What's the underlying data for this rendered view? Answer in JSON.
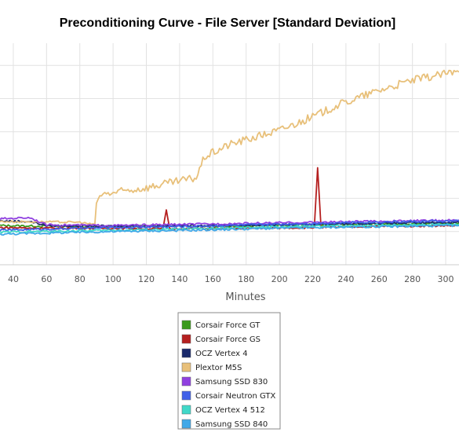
{
  "chart_data": {
    "type": "line",
    "title": "Preconditioning Curve - File Server [Standard Deviation]",
    "xlabel": "Minutes",
    "ylabel": "",
    "xlim": [
      32,
      308
    ],
    "ylim": [
      0,
      1
    ],
    "x_ticks": [
      40,
      60,
      80,
      100,
      120,
      140,
      160,
      180,
      200,
      220,
      240,
      260,
      280,
      300
    ],
    "y_gridlines": [
      0.1,
      0.2,
      0.3,
      0.4,
      0.5,
      0.6,
      0.7
    ],
    "grid": true,
    "legend_position": "bottom-center",
    "series": [
      {
        "name": "Corsair Force GT",
        "color": "#3a9a1c",
        "x": [
          32,
          60,
          90,
          130,
          170,
          210,
          250,
          290,
          308
        ],
        "y": [
          0.118,
          0.116,
          0.114,
          0.117,
          0.116,
          0.12,
          0.122,
          0.124,
          0.125
        ]
      },
      {
        "name": "Corsair Force GS",
        "color": "#b52020",
        "x": [
          32,
          60,
          100,
          130,
          132,
          134,
          180,
          221,
          223,
          225,
          260,
          308
        ],
        "y": [
          0.112,
          0.11,
          0.11,
          0.108,
          0.165,
          0.108,
          0.11,
          0.112,
          0.292,
          0.112,
          0.116,
          0.118
        ]
      },
      {
        "name": "OCZ Vertex 4",
        "color": "#1a2a6c",
        "x": [
          32,
          50,
          60,
          90,
          150,
          200,
          250,
          308
        ],
        "y": [
          0.132,
          0.13,
          0.118,
          0.116,
          0.118,
          0.12,
          0.124,
          0.128
        ]
      },
      {
        "name": "Plextor M5S",
        "color": "#e8c07a",
        "x": [
          32,
          80,
          89,
          90,
          92,
          120,
          150,
          155,
          170,
          200,
          220,
          235,
          260,
          280,
          300,
          308
        ],
        "y": [
          0.13,
          0.128,
          0.12,
          0.185,
          0.21,
          0.232,
          0.262,
          0.325,
          0.362,
          0.405,
          0.445,
          0.48,
          0.525,
          0.555,
          0.575,
          0.58
        ]
      },
      {
        "name": "Samsung SSD 830",
        "color": "#9040e0",
        "x": [
          32,
          40,
          50,
          60,
          100,
          150,
          200,
          250,
          308
        ],
        "y": [
          0.138,
          0.14,
          0.142,
          0.12,
          0.118,
          0.122,
          0.126,
          0.13,
          0.134
        ]
      },
      {
        "name": "Corsair Neutron GTX",
        "color": "#4060e8",
        "x": [
          32,
          100,
          150,
          200,
          250,
          308
        ],
        "y": [
          0.104,
          0.112,
          0.116,
          0.122,
          0.128,
          0.132
        ]
      },
      {
        "name": "OCZ Vertex 4 512",
        "color": "#40d8c8",
        "x": [
          32,
          100,
          150,
          200,
          250,
          308
        ],
        "y": [
          0.098,
          0.104,
          0.108,
          0.114,
          0.118,
          0.122
        ]
      },
      {
        "name": "Samsung SSD 840",
        "color": "#40a8e8",
        "x": [
          32,
          100,
          150,
          200,
          250,
          308
        ],
        "y": [
          0.092,
          0.1,
          0.104,
          0.11,
          0.114,
          0.118
        ]
      }
    ]
  }
}
